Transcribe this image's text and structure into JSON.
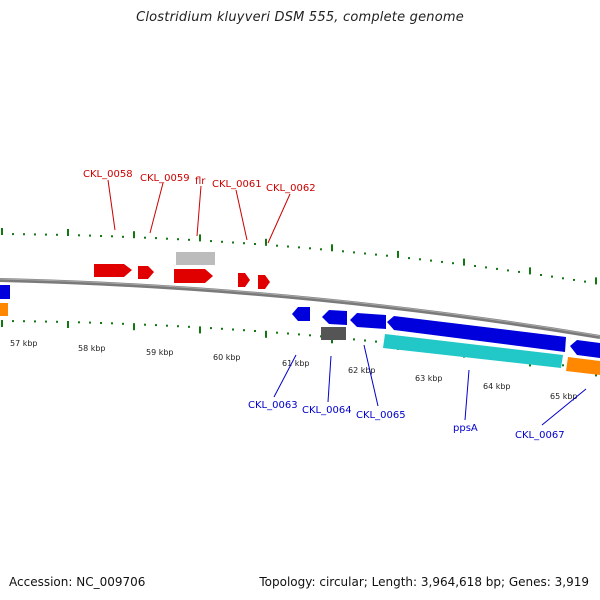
{
  "title": "Clostridium kluyveri DSM 555, complete genome",
  "footer": {
    "accession": "Accession: NC_009706",
    "topology": "Topology: circular; Length: 3,964,618 bp; Genes: 3,919"
  },
  "scale_labels": [
    "57 kbp",
    "58 kbp",
    "59 kbp",
    "60 kbp",
    "61 kbp",
    "62 kbp",
    "63 kbp",
    "64 kbp",
    "65 kbp"
  ],
  "forward_genes": [
    "CKL_0058",
    "CKL_0059",
    "flr",
    "CKL_0061",
    "CKL_0062"
  ],
  "reverse_genes": [
    "CKL_0063",
    "CKL_0064",
    "CKL_0065",
    "ppsA",
    "CKL_0067"
  ],
  "colors": {
    "forward": "#e00000",
    "reverse": "#0000dd",
    "backbone": "#808080",
    "tick": "#117711",
    "cds_cyan": "#22c8c8",
    "cds_orange": "#ff8800",
    "cds_gray": "#bbbbbb",
    "cds_dark": "#555555"
  }
}
